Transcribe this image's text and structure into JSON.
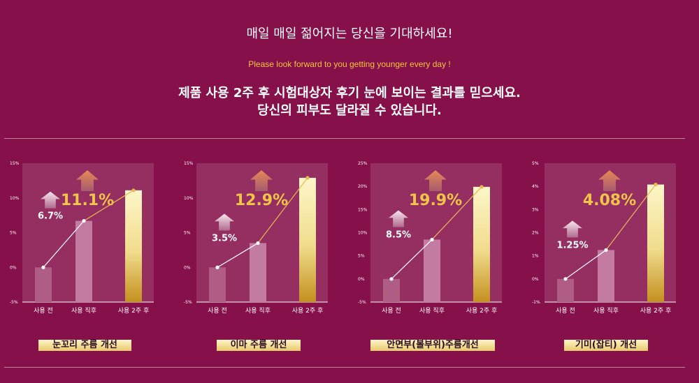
{
  "header": {
    "title": "매일 매일 젊어지는 당신을 기대하세요!",
    "subtitle": "Please look forward to you getting younger every day !",
    "line1": "제품 사용 2주 후 시험대상자 후기 눈에 보이는 결과를 믿으세요.",
    "line2": "당신의 피부도  달라질 수 있습니다."
  },
  "colors": {
    "background": "#85104a",
    "panel": "#962f61",
    "bar_before": "#b05d86",
    "bar_after": "#c47ba2",
    "bar_gold_top": "#fdf6c9",
    "bar_gold_bottom": "#c4901f",
    "value_gold": "#f1c54a"
  },
  "chart_data": [
    {
      "type": "bar",
      "title": "눈꼬리 주름 개선",
      "categories": [
        "사용 전",
        "사용 직후",
        "사용 2주 후"
      ],
      "values": [
        0,
        6.7,
        11.1
      ],
      "value_labels": [
        "",
        "6.7%",
        "11.1%"
      ],
      "ylim": [
        -5,
        15
      ],
      "yticks": [
        -5,
        0,
        5,
        10,
        15
      ],
      "ytick_labels": [
        "-5%",
        "0%",
        "5%",
        "10%",
        "15%"
      ]
    },
    {
      "type": "bar",
      "title": "이마 주름 개선",
      "categories": [
        "사용 전",
        "사용 직후",
        "사용 2주 후"
      ],
      "values": [
        0,
        3.5,
        12.9
      ],
      "value_labels": [
        "",
        "3.5%",
        "12.9%"
      ],
      "ylim": [
        -5,
        15
      ],
      "yticks": [
        -5,
        0,
        5,
        10,
        15
      ],
      "ytick_labels": [
        "-5%",
        "0%",
        "5%",
        "10%",
        "15%"
      ]
    },
    {
      "type": "bar",
      "title": "안면부(볼부위)주름개선",
      "categories": [
        "사용 전",
        "사용 직후",
        "사용 2주 후"
      ],
      "values": [
        0,
        8.5,
        19.9
      ],
      "value_labels": [
        "",
        "8.5%",
        "19.9%"
      ],
      "ylim": [
        -5,
        25
      ],
      "yticks": [
        -5,
        0,
        5,
        10,
        15,
        20,
        25
      ],
      "ytick_labels": [
        "-5%",
        "0%",
        "5%",
        "10%",
        "15%",
        "20%",
        "25%"
      ]
    },
    {
      "type": "bar",
      "title": "기미(잡티) 개선",
      "categories": [
        "사용 전",
        "사용 직후",
        "사용 2주 후"
      ],
      "values": [
        0,
        1.25,
        4.08
      ],
      "value_labels": [
        "",
        "1.25%",
        "4.08%"
      ],
      "ylim": [
        -1,
        5
      ],
      "yticks": [
        -1,
        0,
        1,
        2,
        3,
        4,
        5
      ],
      "ytick_labels": [
        "-1%",
        "0%",
        "1%",
        "2%",
        "3%",
        "4%",
        "5%"
      ]
    }
  ]
}
